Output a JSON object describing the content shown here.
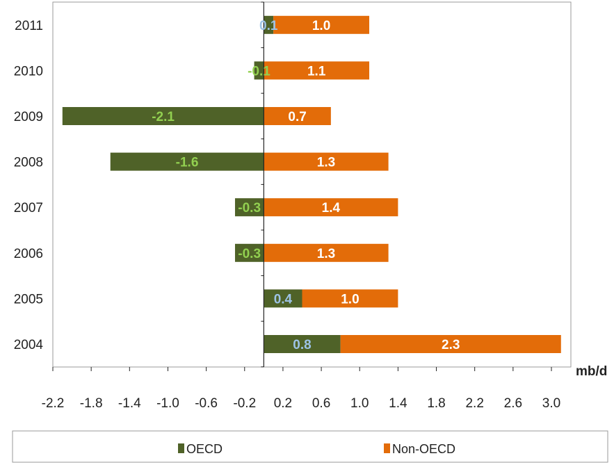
{
  "chart_data": {
    "type": "bar",
    "orientation": "horizontal",
    "stacked": true,
    "categories": [
      "2011",
      "2010",
      "2009",
      "2008",
      "2007",
      "2006",
      "2005",
      "2004"
    ],
    "series": [
      {
        "name": "OECD",
        "color": "#4f6228",
        "label_color_negative": "#92d050",
        "label_color_positive": "#9dc3e6",
        "values": [
          0.1,
          -0.1,
          -2.1,
          -1.6,
          -0.3,
          -0.3,
          0.4,
          0.8
        ],
        "labels": [
          "0.1",
          "-0.1",
          "-2.1",
          "-1.6",
          "-0.3",
          "-0.3",
          "0.4",
          "0.8"
        ]
      },
      {
        "name": "Non-OECD",
        "color": "#e36c09",
        "label_color": "#ffffff",
        "values": [
          1.0,
          1.1,
          0.7,
          1.3,
          1.4,
          1.3,
          1.0,
          2.3
        ],
        "labels": [
          "1.0",
          "1.1",
          "0.7",
          "1.3",
          "1.4",
          "1.3",
          "1.0",
          "2.3"
        ]
      }
    ],
    "x_ticks": [
      "-2.2",
      "-1.8",
      "-1.4",
      "-1.0",
      "-0.6",
      "-0.2",
      "0.2",
      "0.6",
      "1.0",
      "1.4",
      "1.8",
      "2.2",
      "2.6",
      "3.0"
    ],
    "xlim": [
      -2.2,
      3.0
    ],
    "unit": "mb/d",
    "grid": false,
    "legend": {
      "position": "bottom",
      "entries": [
        "OECD",
        "Non-OECD"
      ]
    }
  }
}
